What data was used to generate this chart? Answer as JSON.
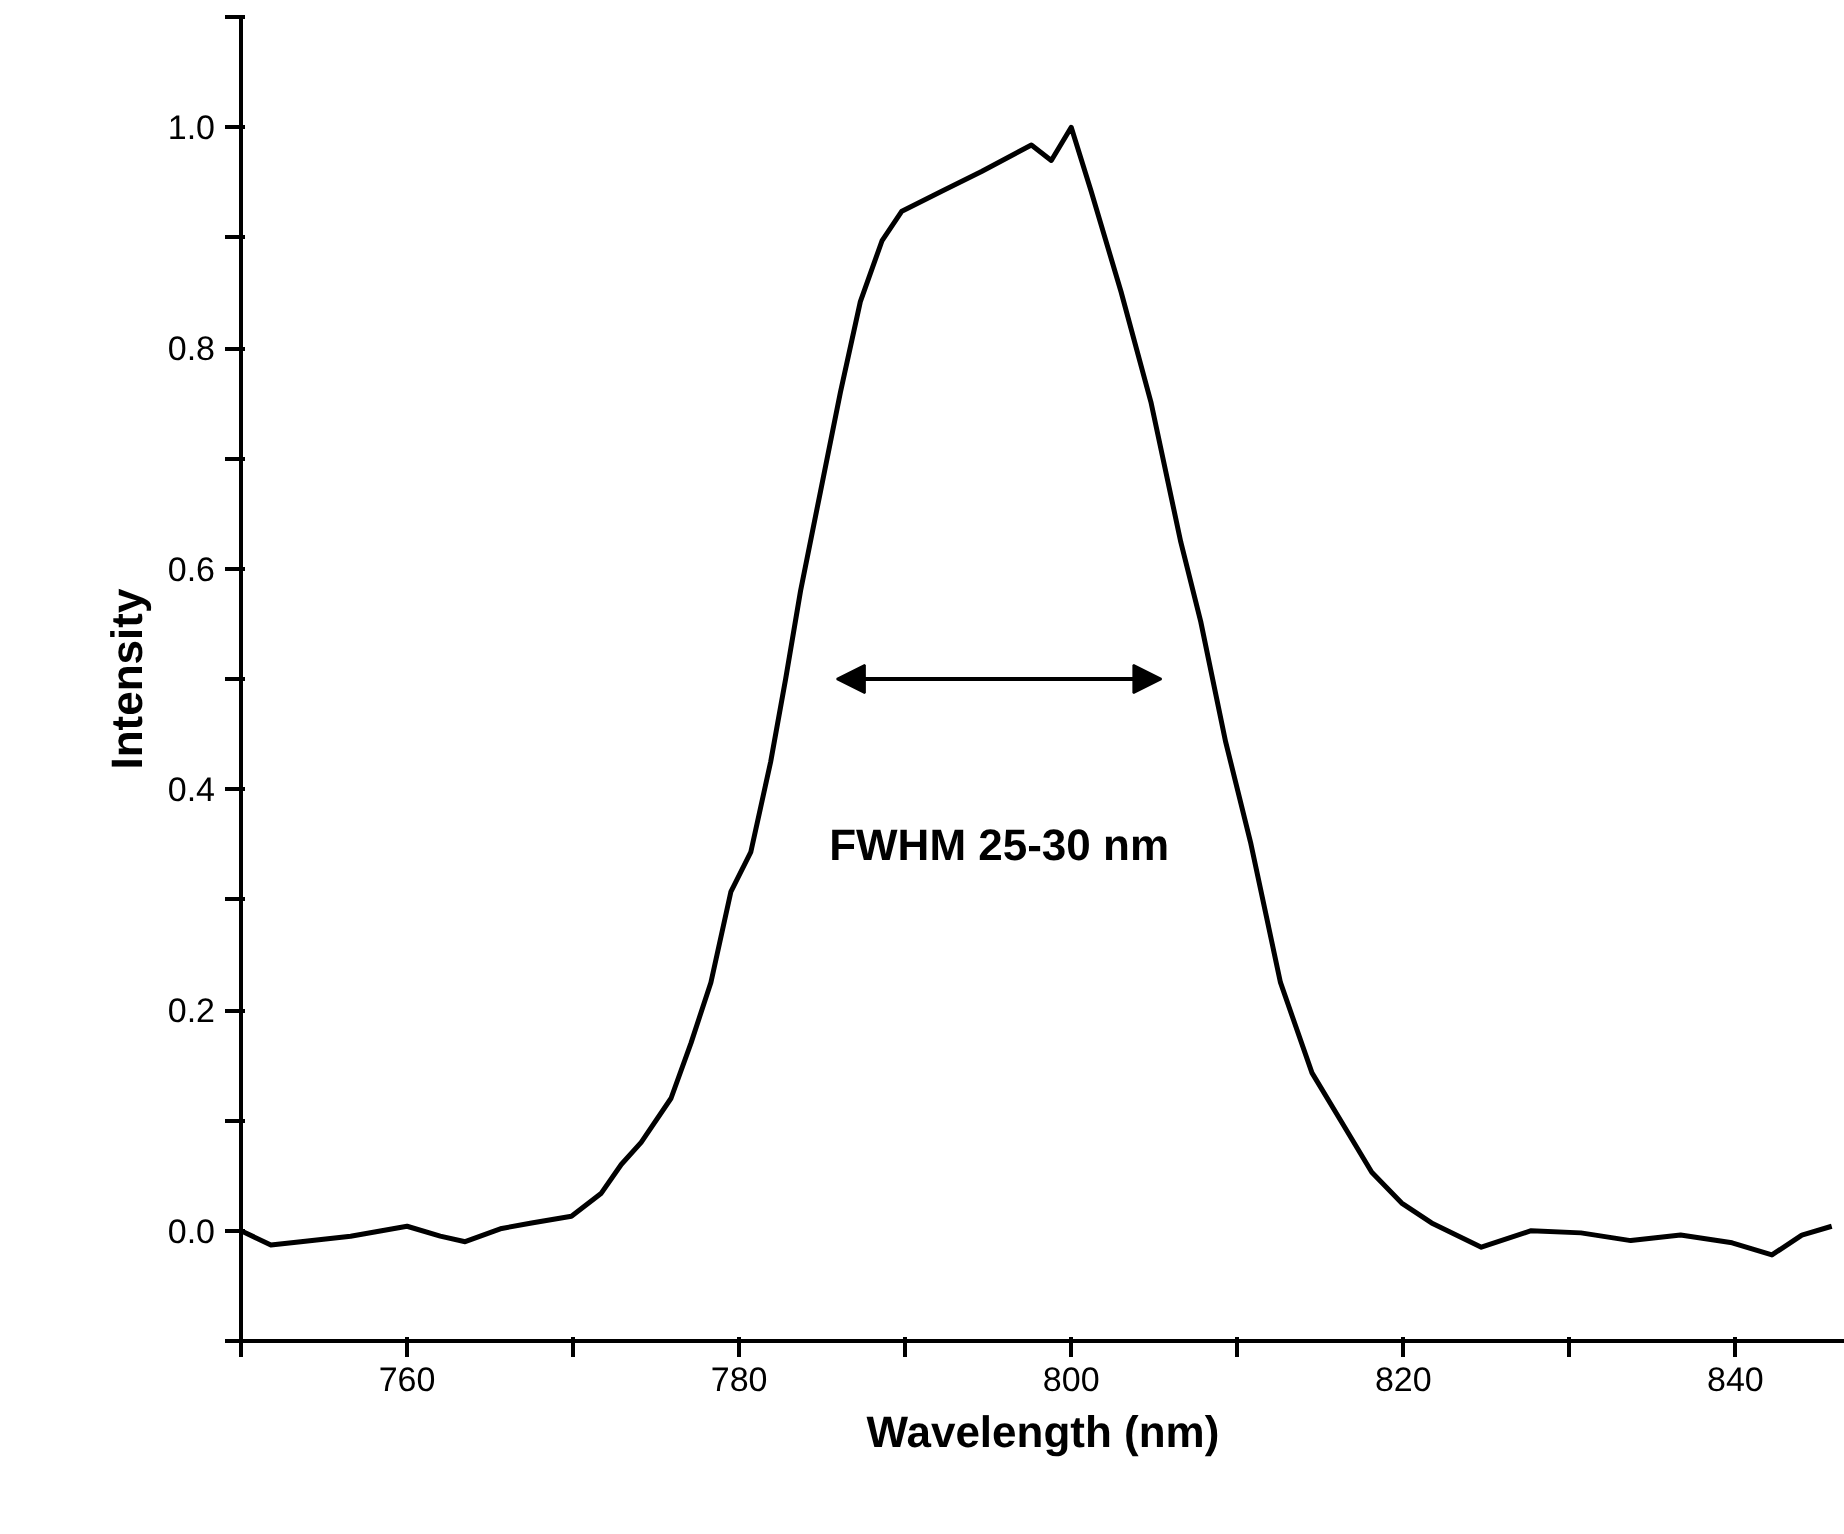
{
  "chart_data": {
    "type": "line",
    "xlabel": "Wavelength (nm)",
    "ylabel": "Intensity",
    "xlim": [
      750,
      846.6
    ],
    "ylim": [
      -0.1,
      1.1
    ],
    "xticks": [
      {
        "value": 750,
        "label": null
      },
      760,
      {
        "value": 770,
        "label": null
      },
      780,
      {
        "value": 790,
        "label": null
      },
      800,
      {
        "value": 810,
        "label": null
      },
      820,
      {
        "value": 830,
        "label": null
      },
      840
    ],
    "yticks": [
      {
        "value": -0.1,
        "label": null
      },
      {
        "value": 0,
        "label": "0.0"
      },
      {
        "value": 0.1,
        "label": null
      },
      0.2,
      {
        "value": 0.3,
        "label": null
      },
      0.4,
      {
        "value": 0.5,
        "label": null
      },
      0.6,
      {
        "value": 0.7,
        "label": null
      },
      0.8,
      {
        "value": 0.9,
        "label": null
      },
      {
        "value": 1.0,
        "label": "1.0"
      },
      {
        "value": 1.1,
        "label": null
      }
    ],
    "grid": false,
    "marker": "none",
    "line_style": "solid",
    "annotations": [
      "FWHM 25-30 nm"
    ],
    "series": [
      {
        "color": "#000000",
        "x": [
          750,
          751.8,
          753.6,
          756.6,
          760,
          762,
          763.5,
          765.7,
          767.5,
          769.9,
          771.7,
          772.9,
          774.1,
          775.9,
          777.1,
          778.3,
          779.5,
          780.7,
          781.9,
          782.8,
          783.7,
          784.9,
          786.1,
          787.3,
          788.6,
          789.8,
          792.2,
          794.6,
          797.6,
          798.8,
          800,
          801.2,
          803,
          804.8,
          806.6,
          807.8,
          809.3,
          810.8,
          812.6,
          814.5,
          816.3,
          818.1,
          819.9,
          821.7,
          824.7,
          827.7,
          830.7,
          833.7,
          836.7,
          839.8,
          842.2,
          844,
          845.8
        ],
        "values": [
          0.0,
          -0.013,
          -0.01,
          -0.005,
          0.004,
          -0.005,
          -0.01,
          0.002,
          0.007,
          0.013,
          0.034,
          0.06,
          0.08,
          0.12,
          0.17,
          0.225,
          0.307,
          0.343,
          0.425,
          0.5,
          0.58,
          0.67,
          0.76,
          0.842,
          0.897,
          0.924,
          0.942,
          0.96,
          0.984,
          0.97,
          1.0,
          0.942,
          0.851,
          0.751,
          0.624,
          0.552,
          0.443,
          0.352,
          0.225,
          0.143,
          0.098,
          0.053,
          0.025,
          0.007,
          -0.015,
          0.0,
          -0.002,
          -0.009,
          -0.004,
          -0.011,
          -0.022,
          -0.004,
          0.004
        ]
      }
    ]
  }
}
